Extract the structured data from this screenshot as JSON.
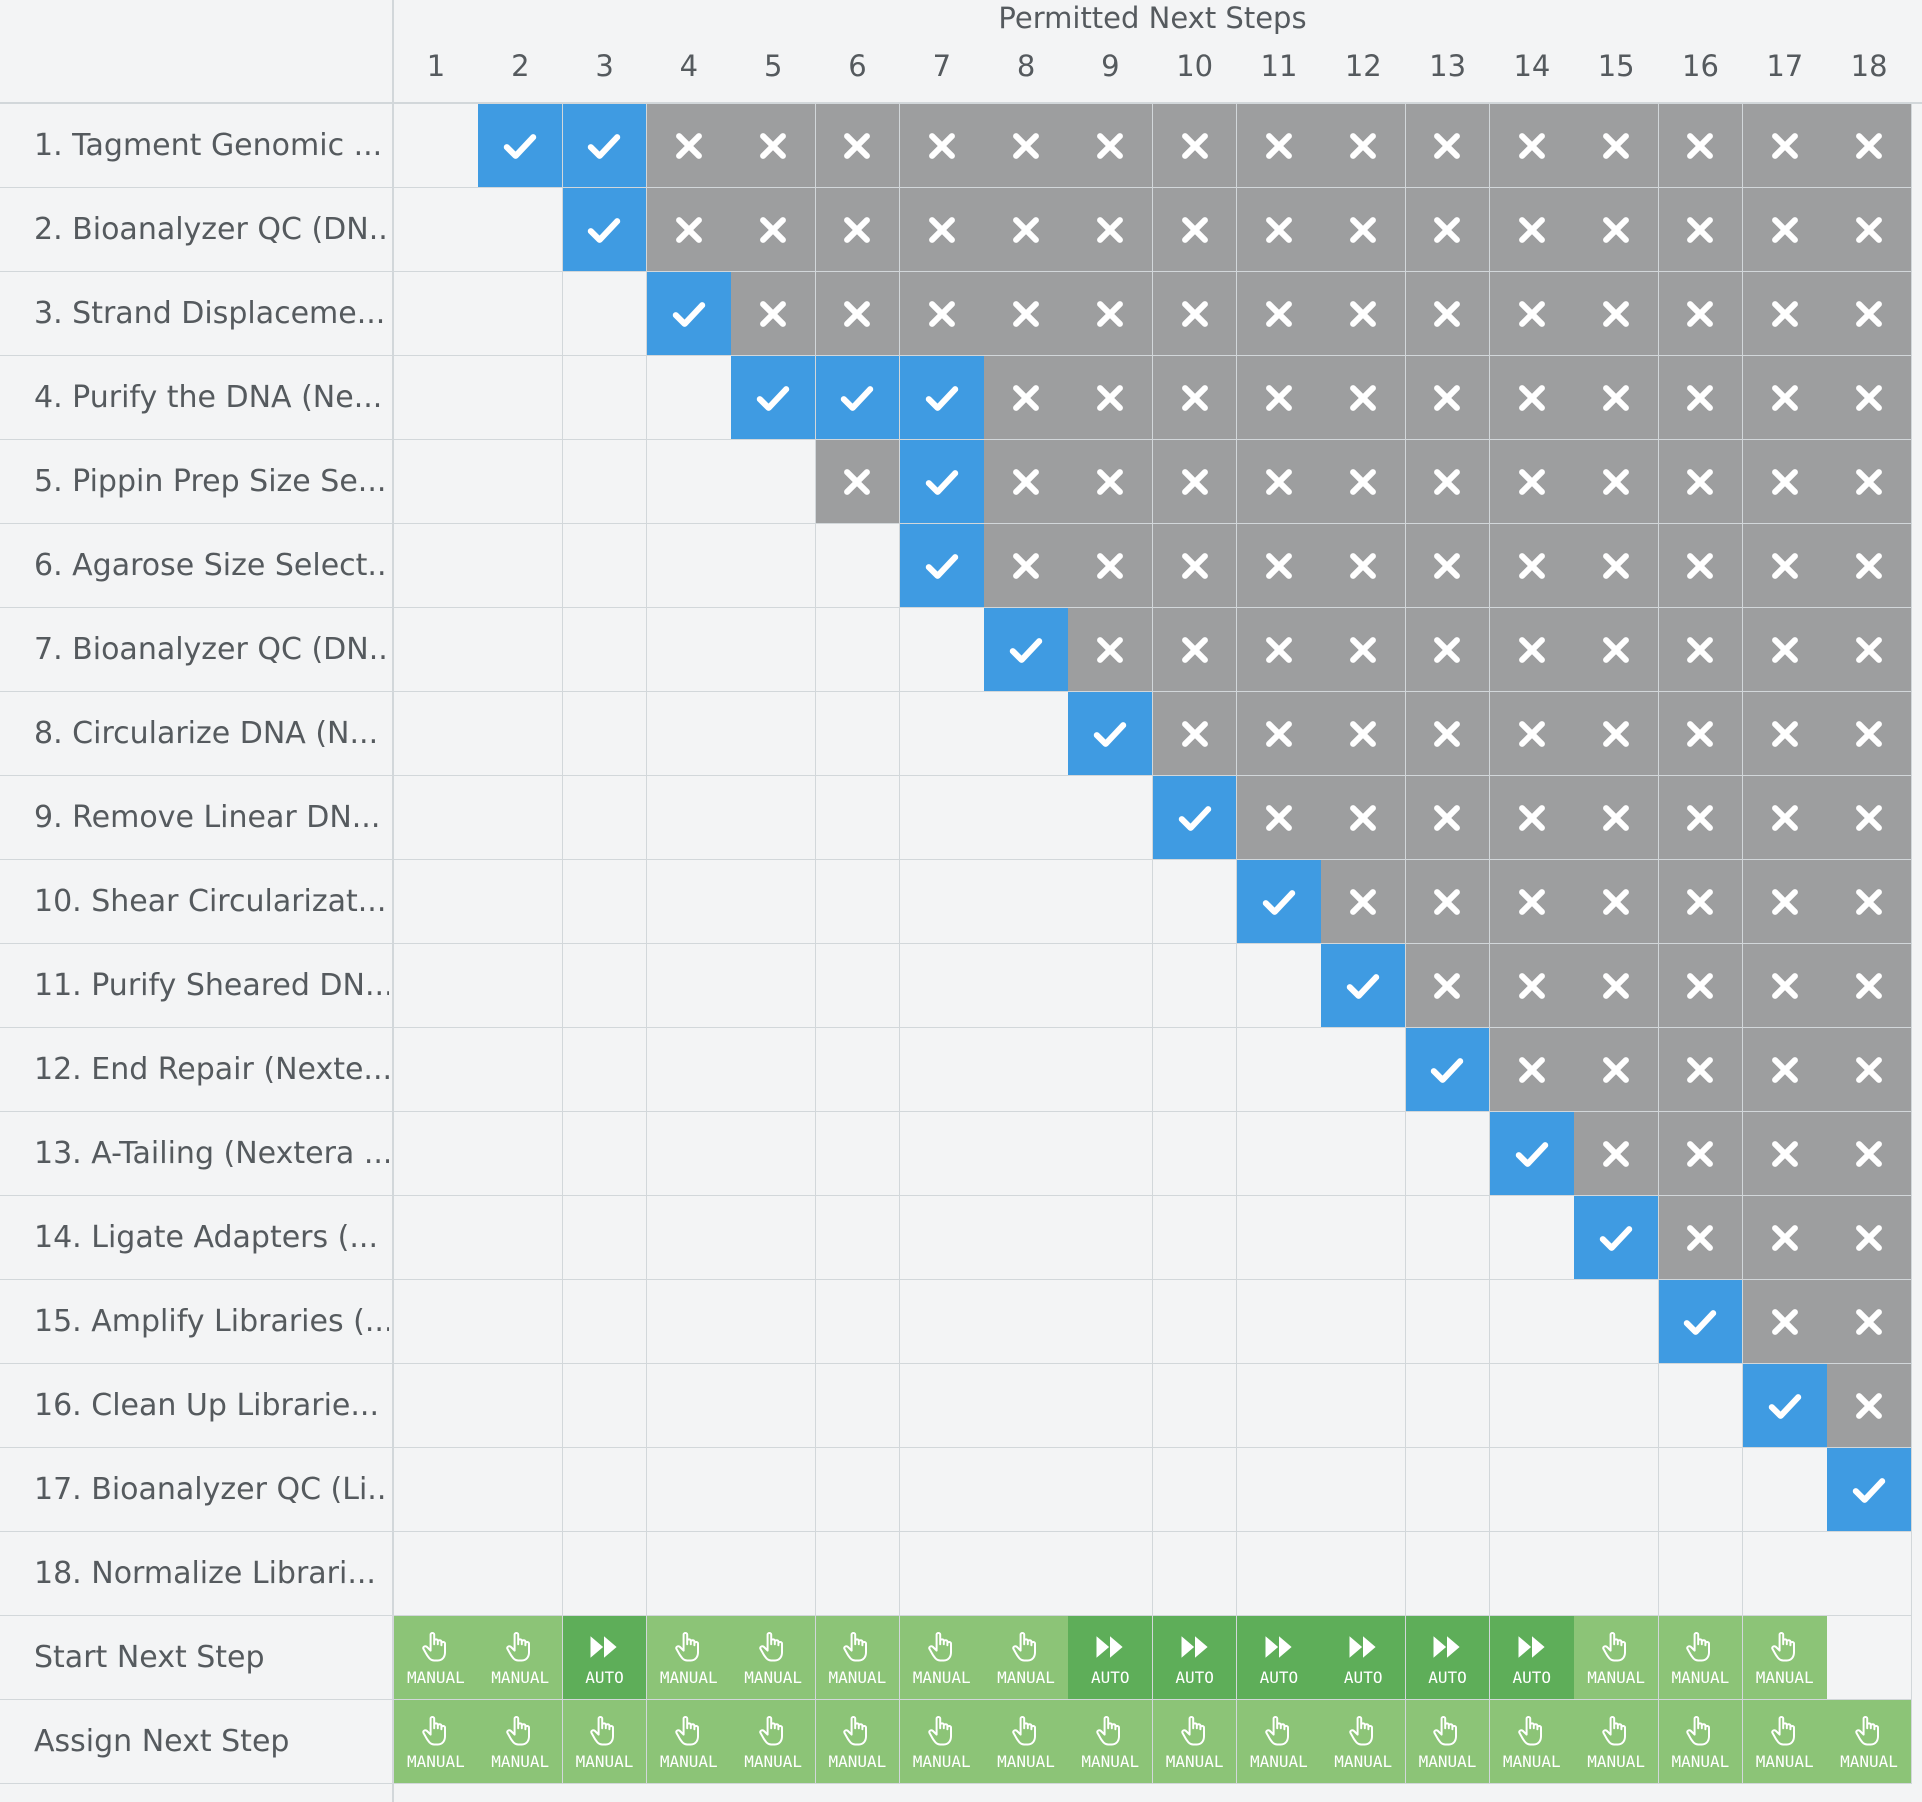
{
  "header": {
    "title": "Permitted Next Steps"
  },
  "columns": [
    "1",
    "2",
    "3",
    "4",
    "5",
    "6",
    "7",
    "8",
    "9",
    "10",
    "11",
    "12",
    "13",
    "14",
    "15",
    "16",
    "17",
    "18"
  ],
  "rows": [
    {
      "label": "1. Tagment Genomic ...",
      "cells": [
        "",
        "check",
        "check",
        "cross",
        "cross",
        "cross",
        "cross",
        "cross",
        "cross",
        "cross",
        "cross",
        "cross",
        "cross",
        "cross",
        "cross",
        "cross",
        "cross",
        "cross"
      ]
    },
    {
      "label": "2. Bioanalyzer QC (DN...",
      "cells": [
        "",
        "",
        "check",
        "cross",
        "cross",
        "cross",
        "cross",
        "cross",
        "cross",
        "cross",
        "cross",
        "cross",
        "cross",
        "cross",
        "cross",
        "cross",
        "cross",
        "cross"
      ]
    },
    {
      "label": "3. Strand Displaceme...",
      "cells": [
        "",
        "",
        "",
        "check",
        "cross",
        "cross",
        "cross",
        "cross",
        "cross",
        "cross",
        "cross",
        "cross",
        "cross",
        "cross",
        "cross",
        "cross",
        "cross",
        "cross"
      ]
    },
    {
      "label": "4. Purify the DNA (Ne...",
      "cells": [
        "",
        "",
        "",
        "",
        "check",
        "check",
        "check",
        "cross",
        "cross",
        "cross",
        "cross",
        "cross",
        "cross",
        "cross",
        "cross",
        "cross",
        "cross",
        "cross"
      ]
    },
    {
      "label": "5. Pippin Prep Size Se...",
      "cells": [
        "",
        "",
        "",
        "",
        "",
        "cross",
        "check",
        "cross",
        "cross",
        "cross",
        "cross",
        "cross",
        "cross",
        "cross",
        "cross",
        "cross",
        "cross",
        "cross"
      ]
    },
    {
      "label": "6. Agarose Size Select...",
      "cells": [
        "",
        "",
        "",
        "",
        "",
        "",
        "check",
        "cross",
        "cross",
        "cross",
        "cross",
        "cross",
        "cross",
        "cross",
        "cross",
        "cross",
        "cross",
        "cross"
      ]
    },
    {
      "label": "7. Bioanalyzer QC (DN...",
      "cells": [
        "",
        "",
        "",
        "",
        "",
        "",
        "",
        "check",
        "cross",
        "cross",
        "cross",
        "cross",
        "cross",
        "cross",
        "cross",
        "cross",
        "cross",
        "cross"
      ]
    },
    {
      "label": "8. Circularize DNA (N...",
      "cells": [
        "",
        "",
        "",
        "",
        "",
        "",
        "",
        "",
        "check",
        "cross",
        "cross",
        "cross",
        "cross",
        "cross",
        "cross",
        "cross",
        "cross",
        "cross"
      ]
    },
    {
      "label": "9. Remove Linear DN...",
      "cells": [
        "",
        "",
        "",
        "",
        "",
        "",
        "",
        "",
        "",
        "check",
        "cross",
        "cross",
        "cross",
        "cross",
        "cross",
        "cross",
        "cross",
        "cross"
      ]
    },
    {
      "label": "10. Shear Circularizat...",
      "cells": [
        "",
        "",
        "",
        "",
        "",
        "",
        "",
        "",
        "",
        "",
        "check",
        "cross",
        "cross",
        "cross",
        "cross",
        "cross",
        "cross",
        "cross"
      ]
    },
    {
      "label": "11. Purify Sheared DN...",
      "cells": [
        "",
        "",
        "",
        "",
        "",
        "",
        "",
        "",
        "",
        "",
        "",
        "check",
        "cross",
        "cross",
        "cross",
        "cross",
        "cross",
        "cross"
      ]
    },
    {
      "label": "12. End Repair (Nexte...",
      "cells": [
        "",
        "",
        "",
        "",
        "",
        "",
        "",
        "",
        "",
        "",
        "",
        "",
        "check",
        "cross",
        "cross",
        "cross",
        "cross",
        "cross"
      ]
    },
    {
      "label": "13. A-Tailing (Nextera ...",
      "cells": [
        "",
        "",
        "",
        "",
        "",
        "",
        "",
        "",
        "",
        "",
        "",
        "",
        "",
        "check",
        "cross",
        "cross",
        "cross",
        "cross"
      ]
    },
    {
      "label": "14. Ligate Adapters (...",
      "cells": [
        "",
        "",
        "",
        "",
        "",
        "",
        "",
        "",
        "",
        "",
        "",
        "",
        "",
        "",
        "check",
        "cross",
        "cross",
        "cross"
      ]
    },
    {
      "label": "15. Amplify Libraries (...",
      "cells": [
        "",
        "",
        "",
        "",
        "",
        "",
        "",
        "",
        "",
        "",
        "",
        "",
        "",
        "",
        "",
        "check",
        "cross",
        "cross"
      ]
    },
    {
      "label": "16. Clean Up Librarie...",
      "cells": [
        "",
        "",
        "",
        "",
        "",
        "",
        "",
        "",
        "",
        "",
        "",
        "",
        "",
        "",
        "",
        "",
        "check",
        "cross"
      ]
    },
    {
      "label": "17. Bioanalyzer QC (Li...",
      "cells": [
        "",
        "",
        "",
        "",
        "",
        "",
        "",
        "",
        "",
        "",
        "",
        "",
        "",
        "",
        "",
        "",
        "",
        "check"
      ]
    },
    {
      "label": "18. Normalize Librari...",
      "cells": [
        "",
        "",
        "",
        "",
        "",
        "",
        "",
        "",
        "",
        "",
        "",
        "",
        "",
        "",
        "",
        "",
        "",
        ""
      ]
    }
  ],
  "start_row": {
    "label": "Start Next Step",
    "cells": [
      "MANUAL",
      "MANUAL",
      "AUTO",
      "MANUAL",
      "MANUAL",
      "MANUAL",
      "MANUAL",
      "MANUAL",
      "AUTO",
      "AUTO",
      "AUTO",
      "AUTO",
      "AUTO",
      "AUTO",
      "MANUAL",
      "MANUAL",
      "MANUAL",
      ""
    ]
  },
  "assign_row": {
    "label": "Assign Next Step",
    "cells": [
      "MANUAL",
      "MANUAL",
      "MANUAL",
      "MANUAL",
      "MANUAL",
      "MANUAL",
      "MANUAL",
      "MANUAL",
      "MANUAL",
      "MANUAL",
      "MANUAL",
      "MANUAL",
      "MANUAL",
      "MANUAL",
      "MANUAL",
      "MANUAL",
      "MANUAL",
      "MANUAL"
    ]
  },
  "colors": {
    "check": "#3f9be2",
    "cross": "#9d9e9f",
    "manual": "#8cc477",
    "auto": "#5eae59",
    "background": "#f3f4f5",
    "grid": "#d2d7da"
  },
  "icons": {
    "check": "check-icon",
    "cross": "cross-icon",
    "manual": "hand-pointer-icon",
    "auto": "fast-forward-icon"
  }
}
